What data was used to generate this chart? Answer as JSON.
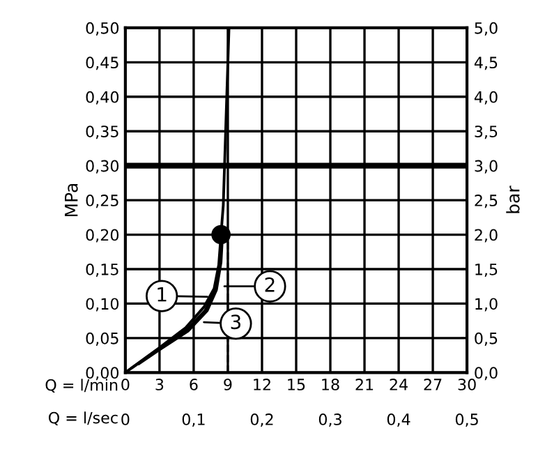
{
  "chart_data": {
    "type": "line",
    "xlabel": "Q = l/min",
    "x2label": "Q = l/sec",
    "ylabel": "MPa",
    "y2label": "bar",
    "xlim": [
      0,
      30
    ],
    "xticks": [
      0,
      3,
      6,
      9,
      12,
      15,
      18,
      21,
      24,
      27,
      30
    ],
    "x2lim": [
      0,
      0.5
    ],
    "x2ticks": [
      0,
      {
        "value": 0.1,
        "label": "0,1"
      },
      {
        "value": 0.2,
        "label": "0,2"
      },
      {
        "value": 0.3,
        "label": "0,3"
      },
      {
        "value": 0.4,
        "label": "0,4"
      },
      {
        "value": 0.5,
        "label": "0,5"
      }
    ],
    "ylim": [
      0,
      0.5
    ],
    "yticks": [
      {
        "value": 0,
        "label": "0,00"
      },
      {
        "value": 0.05,
        "label": "0,05"
      },
      {
        "value": 0.1,
        "label": "0,10"
      },
      {
        "value": 0.15,
        "label": "0,15"
      },
      {
        "value": 0.2,
        "label": "0,20"
      },
      {
        "value": 0.25,
        "label": "0,25"
      },
      {
        "value": 0.3,
        "label": "0,30"
      },
      {
        "value": 0.35,
        "label": "0,35"
      },
      {
        "value": 0.4,
        "label": "0,40"
      },
      {
        "value": 0.45,
        "label": "0,45"
      },
      {
        "value": 0.5,
        "label": "0,50"
      }
    ],
    "y2lim": [
      0,
      5
    ],
    "y2ticks": [
      {
        "value": 0,
        "label": "0,0"
      },
      {
        "value": 0.5,
        "label": "0,5"
      },
      {
        "value": 1,
        "label": "1,0"
      },
      {
        "value": 1.5,
        "label": "1,5"
      },
      {
        "value": 2,
        "label": "2,0"
      },
      {
        "value": 2.5,
        "label": "2,5"
      },
      {
        "value": 3,
        "label": "3,0"
      },
      {
        "value": 3.5,
        "label": "3,5"
      },
      {
        "value": 4,
        "label": "4,0"
      },
      {
        "value": 4.5,
        "label": "4,5"
      },
      {
        "value": 5,
        "label": "5,0"
      }
    ],
    "grid": true,
    "series": [
      {
        "color": "#000000",
        "x": [
          0,
          2.9,
          5.3,
          6.9,
          7.8,
          8.2,
          8.4,
          8.6,
          9.1
        ],
        "values": [
          0,
          0.035,
          0.065,
          0.095,
          0.122,
          0.156,
          0.2,
          0.243,
          0.5
        ]
      },
      {
        "color": "#000000",
        "x": [
          0.6,
          2.9,
          5.4,
          7.0,
          7.9,
          8.3,
          8.45
        ],
        "values": [
          0.007,
          0.033,
          0.062,
          0.09,
          0.12,
          0.156,
          0.2
        ]
      },
      {
        "color": "#000000",
        "x": [
          1.2,
          2.9,
          5.5,
          7.2,
          8.0,
          8.4,
          8.5
        ],
        "values": [
          0.013,
          0.032,
          0.06,
          0.09,
          0.12,
          0.16,
          0.19
        ]
      },
      {
        "color": "#000000",
        "type": "line",
        "line_style": "dashed",
        "x": [
          9,
          9
        ],
        "values": [
          0,
          0.2
        ]
      },
      {
        "color": "#000000",
        "type": "scatter",
        "marker": "circle",
        "x": [
          8.4
        ],
        "values": [
          0.2
        ]
      }
    ],
    "ref_lines": [
      {
        "axis": "y",
        "value": 0.3,
        "color": "#000000"
      }
    ],
    "annotations": [
      {
        "text": "1",
        "x": 7.2,
        "y": 0.11
      },
      {
        "text": "2",
        "x": 8.7,
        "y": 0.125
      },
      {
        "text": "3",
        "x": 6.9,
        "y": 0.073
      }
    ]
  }
}
